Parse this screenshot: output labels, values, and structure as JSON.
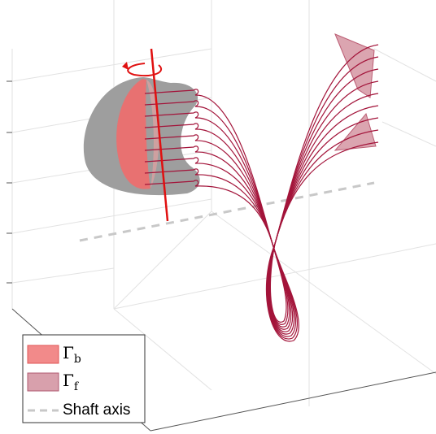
{
  "legend": {
    "entries": [
      {
        "symbol": "Γ",
        "subscript": "b"
      },
      {
        "symbol": "Γ",
        "subscript": "f"
      },
      {
        "label": "Shaft axis"
      }
    ]
  }
}
